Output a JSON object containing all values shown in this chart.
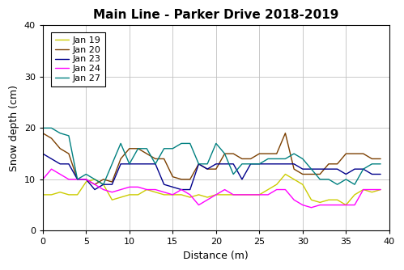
{
  "title": "Main Line - Parker Drive 2018-2019",
  "xlabel": "Distance (m)",
  "ylabel": "Snow depth (cm)",
  "xlim": [
    0,
    40
  ],
  "ylim": [
    0,
    40
  ],
  "xticks": [
    0,
    5,
    10,
    15,
    20,
    25,
    30,
    35,
    40
  ],
  "yticks": [
    0,
    10,
    20,
    30,
    40
  ],
  "series": [
    {
      "label": "Jan 19",
      "color": "#CCCC00",
      "x": [
        0,
        1,
        2,
        3,
        4,
        5,
        6,
        7,
        8,
        9,
        10,
        11,
        12,
        13,
        14,
        15,
        16,
        17,
        18,
        19,
        20,
        21,
        22,
        23,
        24,
        25,
        26,
        27,
        28,
        29,
        30,
        31,
        32,
        33,
        34,
        35,
        36,
        37,
        38,
        39
      ],
      "y": [
        7,
        7,
        7.5,
        7,
        7,
        9.5,
        10,
        9,
        6,
        6.5,
        7,
        7,
        8,
        7.5,
        7,
        7,
        7,
        6.5,
        7,
        6.5,
        7,
        7,
        7,
        7,
        7,
        7,
        8,
        9,
        11,
        10,
        9,
        6,
        5.5,
        6,
        6,
        5,
        7,
        8,
        7.5,
        8
      ]
    },
    {
      "label": "Jan 20",
      "color": "#7B3F00",
      "x": [
        0,
        1,
        2,
        3,
        4,
        5,
        6,
        7,
        8,
        9,
        10,
        11,
        12,
        13,
        14,
        15,
        16,
        17,
        18,
        19,
        20,
        21,
        22,
        23,
        24,
        25,
        26,
        27,
        28,
        29,
        30,
        31,
        32,
        33,
        34,
        35,
        36,
        37,
        38,
        39
      ],
      "y": [
        19,
        18,
        16,
        15,
        10,
        10,
        9,
        10,
        9.5,
        14,
        16,
        16,
        15,
        14,
        14,
        10.5,
        10,
        10,
        13,
        12,
        12,
        15,
        15,
        14,
        14,
        15,
        15,
        15,
        19,
        12,
        11,
        11,
        11,
        13,
        13,
        15,
        15,
        15,
        14,
        14
      ]
    },
    {
      "label": "Jan 23",
      "color": "#00008B",
      "x": [
        0,
        1,
        2,
        3,
        4,
        5,
        6,
        7,
        8,
        9,
        10,
        11,
        12,
        13,
        14,
        15,
        16,
        17,
        18,
        19,
        20,
        21,
        22,
        23,
        24,
        25,
        26,
        27,
        28,
        29,
        30,
        31,
        32,
        33,
        34,
        35,
        36,
        37,
        38,
        39
      ],
      "y": [
        15,
        14,
        13,
        13,
        10,
        10,
        8,
        9,
        9,
        13,
        13,
        13,
        13,
        13,
        9,
        8.5,
        8,
        8,
        13,
        12,
        13,
        13,
        13,
        10,
        13,
        13,
        13,
        13,
        13,
        13,
        12,
        12,
        12,
        12,
        12,
        11,
        12,
        12,
        11,
        11
      ]
    },
    {
      "label": "Jan 24",
      "color": "#FF00FF",
      "x": [
        0,
        1,
        2,
        3,
        4,
        5,
        6,
        7,
        8,
        9,
        10,
        11,
        12,
        13,
        14,
        15,
        16,
        17,
        18,
        19,
        20,
        21,
        22,
        23,
        24,
        25,
        26,
        27,
        28,
        29,
        30,
        31,
        32,
        33,
        34,
        35,
        36,
        37,
        38,
        39
      ],
      "y": [
        10,
        12,
        11,
        10,
        10,
        10,
        9,
        8,
        7.5,
        8,
        8.5,
        8.5,
        8,
        8,
        7.5,
        7,
        8,
        7,
        5,
        6,
        7,
        8,
        7,
        7,
        7,
        7,
        7,
        8,
        8,
        6,
        5,
        4.5,
        5,
        5,
        5,
        5,
        5,
        8,
        8,
        8
      ]
    },
    {
      "label": "Jan 27",
      "color": "#008080",
      "x": [
        0,
        1,
        2,
        3,
        4,
        5,
        6,
        7,
        8,
        9,
        10,
        11,
        12,
        13,
        14,
        15,
        16,
        17,
        18,
        19,
        20,
        21,
        22,
        23,
        24,
        25,
        26,
        27,
        28,
        29,
        30,
        31,
        32,
        33,
        34,
        35,
        36,
        37,
        38,
        39
      ],
      "y": [
        20,
        20,
        19,
        18.5,
        10,
        11,
        10,
        9,
        13,
        17,
        13,
        16,
        16,
        13,
        16,
        16,
        17,
        17,
        13,
        13,
        17,
        15,
        11,
        13,
        13,
        13,
        14,
        14,
        14,
        15,
        14,
        12,
        10,
        10,
        9,
        10,
        9,
        12,
        13,
        13
      ]
    }
  ],
  "background_color": "#FFFFFF",
  "title_fontsize": 11,
  "label_fontsize": 9,
  "tick_fontsize": 8,
  "legend_fontsize": 8
}
